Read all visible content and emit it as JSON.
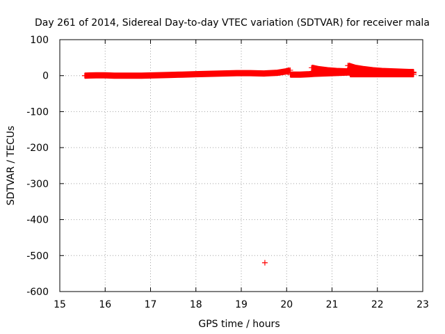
{
  "chart_data": {
    "type": "scatter",
    "title": "Day 261 of 2014, Sidereal Day-to-day VTEC variation (SDTVAR) for receiver mala",
    "xlabel": "GPS time / hours",
    "ylabel": "SDTVAR / TECUs",
    "xlim": [
      15,
      23
    ],
    "ylim": [
      -600,
      100
    ],
    "grid": true,
    "x_ticks": [
      15,
      16,
      17,
      18,
      19,
      20,
      21,
      22,
      23
    ],
    "y_ticks": [
      100,
      0,
      -100,
      -200,
      -300,
      -400,
      -500,
      -600
    ],
    "marker": "+",
    "color": "#ff0000",
    "series": [
      {
        "name": "SDTVAR",
        "segments": [
          {
            "x": [
              15.55,
              15.8,
              16.0,
              16.2,
              16.5,
              16.8,
              17.1,
              17.4,
              17.7,
              18.0,
              18.3,
              18.6,
              18.9,
              19.2,
              19.5,
              19.8,
              20.0,
              20.08
            ],
            "y": [
              0,
              1,
              1,
              0,
              0,
              0,
              1,
              2,
              3,
              4,
              5,
              6,
              7,
              7,
              6,
              8,
              12,
              15
            ]
          },
          {
            "x": [
              20.08,
              20.3,
              20.5,
              20.6,
              20.8,
              21.0,
              21.2,
              21.4
            ],
            "y": [
              3,
              3,
              4,
              5,
              6,
              7,
              8,
              9
            ]
          },
          {
            "x": [
              20.55,
              20.7,
              20.9,
              21.1,
              21.3,
              21.5,
              21.7,
              21.9,
              22.1,
              22.3,
              22.5,
              22.7,
              22.8
            ],
            "y": [
              22,
              18,
              15,
              13,
              12,
              11,
              10,
              10,
              9,
              9,
              8,
              8,
              8
            ]
          },
          {
            "x": [
              21.35,
              21.5,
              21.7,
              21.9,
              22.1,
              22.3,
              22.5,
              22.7,
              22.8
            ],
            "y": [
              28,
              22,
              18,
              15,
              13,
              12,
              11,
              10,
              10
            ]
          },
          {
            "x": [
              21.4,
              21.6,
              21.8,
              22.0,
              22.2,
              22.4,
              22.6,
              22.8
            ],
            "y": [
              4,
              4,
              4,
              4,
              4,
              4,
              4,
              4
            ]
          }
        ],
        "outliers": [
          {
            "x": 19.52,
            "y": -520
          }
        ]
      }
    ]
  }
}
